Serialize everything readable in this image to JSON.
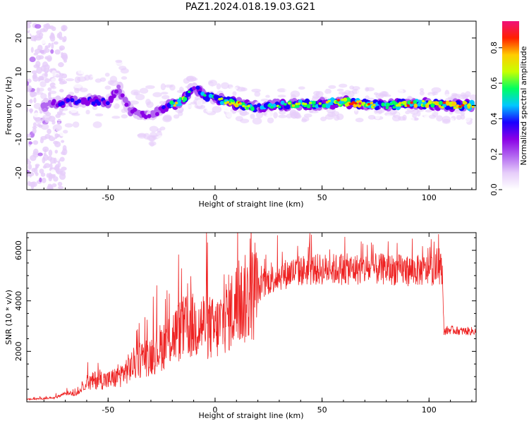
{
  "figure": {
    "title": "PAZ1.2024.018.19.03.G21"
  },
  "chart_data": [
    {
      "type": "heatmap",
      "title": "",
      "xlabel": "Height of straight line (km)",
      "ylabel": "Frequency (Hz)",
      "xlim": [
        -88,
        122
      ],
      "ylim": [
        -25,
        25
      ],
      "xticks": [
        -50,
        0,
        50,
        100
      ],
      "yticks": [
        -20,
        -10,
        0,
        10,
        20
      ],
      "colorbar": {
        "label": "Normalized spectral amplitude",
        "range": [
          0,
          0.95
        ],
        "ticks": [
          0.0,
          0.2,
          0.4,
          0.6,
          0.8
        ],
        "colormap": [
          "#ffffff",
          "#e6cdfa",
          "#b266f0",
          "#8a00e6",
          "#1a00ff",
          "#00c8ff",
          "#00ff60",
          "#c8ff00",
          "#ffcc00",
          "#ff2000",
          "#f0107a"
        ]
      },
      "ridge": {
        "x": [
          -80,
          -70,
          -60,
          -50,
          -45,
          -40,
          -35,
          -30,
          -25,
          -20,
          -15,
          -10,
          -5,
          0,
          10,
          20,
          30,
          40,
          50,
          60,
          70,
          80,
          90,
          100,
          110,
          120
        ],
        "frequency": [
          0.5,
          1,
          1.5,
          1,
          5,
          -1.5,
          -2.5,
          -3,
          -1.5,
          0.5,
          1.5,
          5.5,
          3,
          2,
          0.5,
          -0.5,
          0,
          0.5,
          0.5,
          1,
          0.5,
          0,
          0.5,
          0.5,
          0,
          0
        ],
        "peak_amplitude": [
          0.25,
          0.45,
          0.45,
          0.45,
          0.35,
          0.3,
          0.35,
          0.3,
          0.35,
          0.7,
          0.75,
          0.35,
          0.55,
          0.55,
          0.85,
          0.5,
          0.6,
          0.65,
          0.6,
          0.85,
          0.85,
          0.6,
          0.75,
          0.75,
          0.8,
          0.8
        ]
      }
    },
    {
      "type": "line",
      "title": "",
      "xlabel": "Height of straight line (km)",
      "ylabel": "SNR (10 * v/v)",
      "xlim": [
        -88,
        122
      ],
      "ylim": [
        0,
        6700
      ],
      "xticks": [
        -50,
        0,
        50,
        100
      ],
      "yticks": [
        2000,
        4000,
        6000
      ],
      "color": "#ee2222",
      "envelope": {
        "x": [
          -88,
          -75,
          -70,
          -65,
          -60,
          -55,
          -50,
          -45,
          -40,
          -35,
          -30,
          -25,
          -20,
          -15,
          -10,
          -5,
          0,
          5,
          10,
          15,
          20,
          25,
          30,
          40,
          50,
          60,
          70,
          80,
          90,
          100,
          106,
          107,
          110,
          115,
          122
        ],
        "snr": [
          100,
          150,
          350,
          300,
          700,
          900,
          850,
          1000,
          1350,
          1700,
          1850,
          2200,
          2600,
          2900,
          3000,
          3100,
          2800,
          3400,
          3800,
          4100,
          4400,
          4800,
          5000,
          5200,
          5250,
          5250,
          5250,
          5250,
          5200,
          5200,
          5300,
          2800,
          2850,
          2800,
          2800
        ]
      }
    }
  ]
}
